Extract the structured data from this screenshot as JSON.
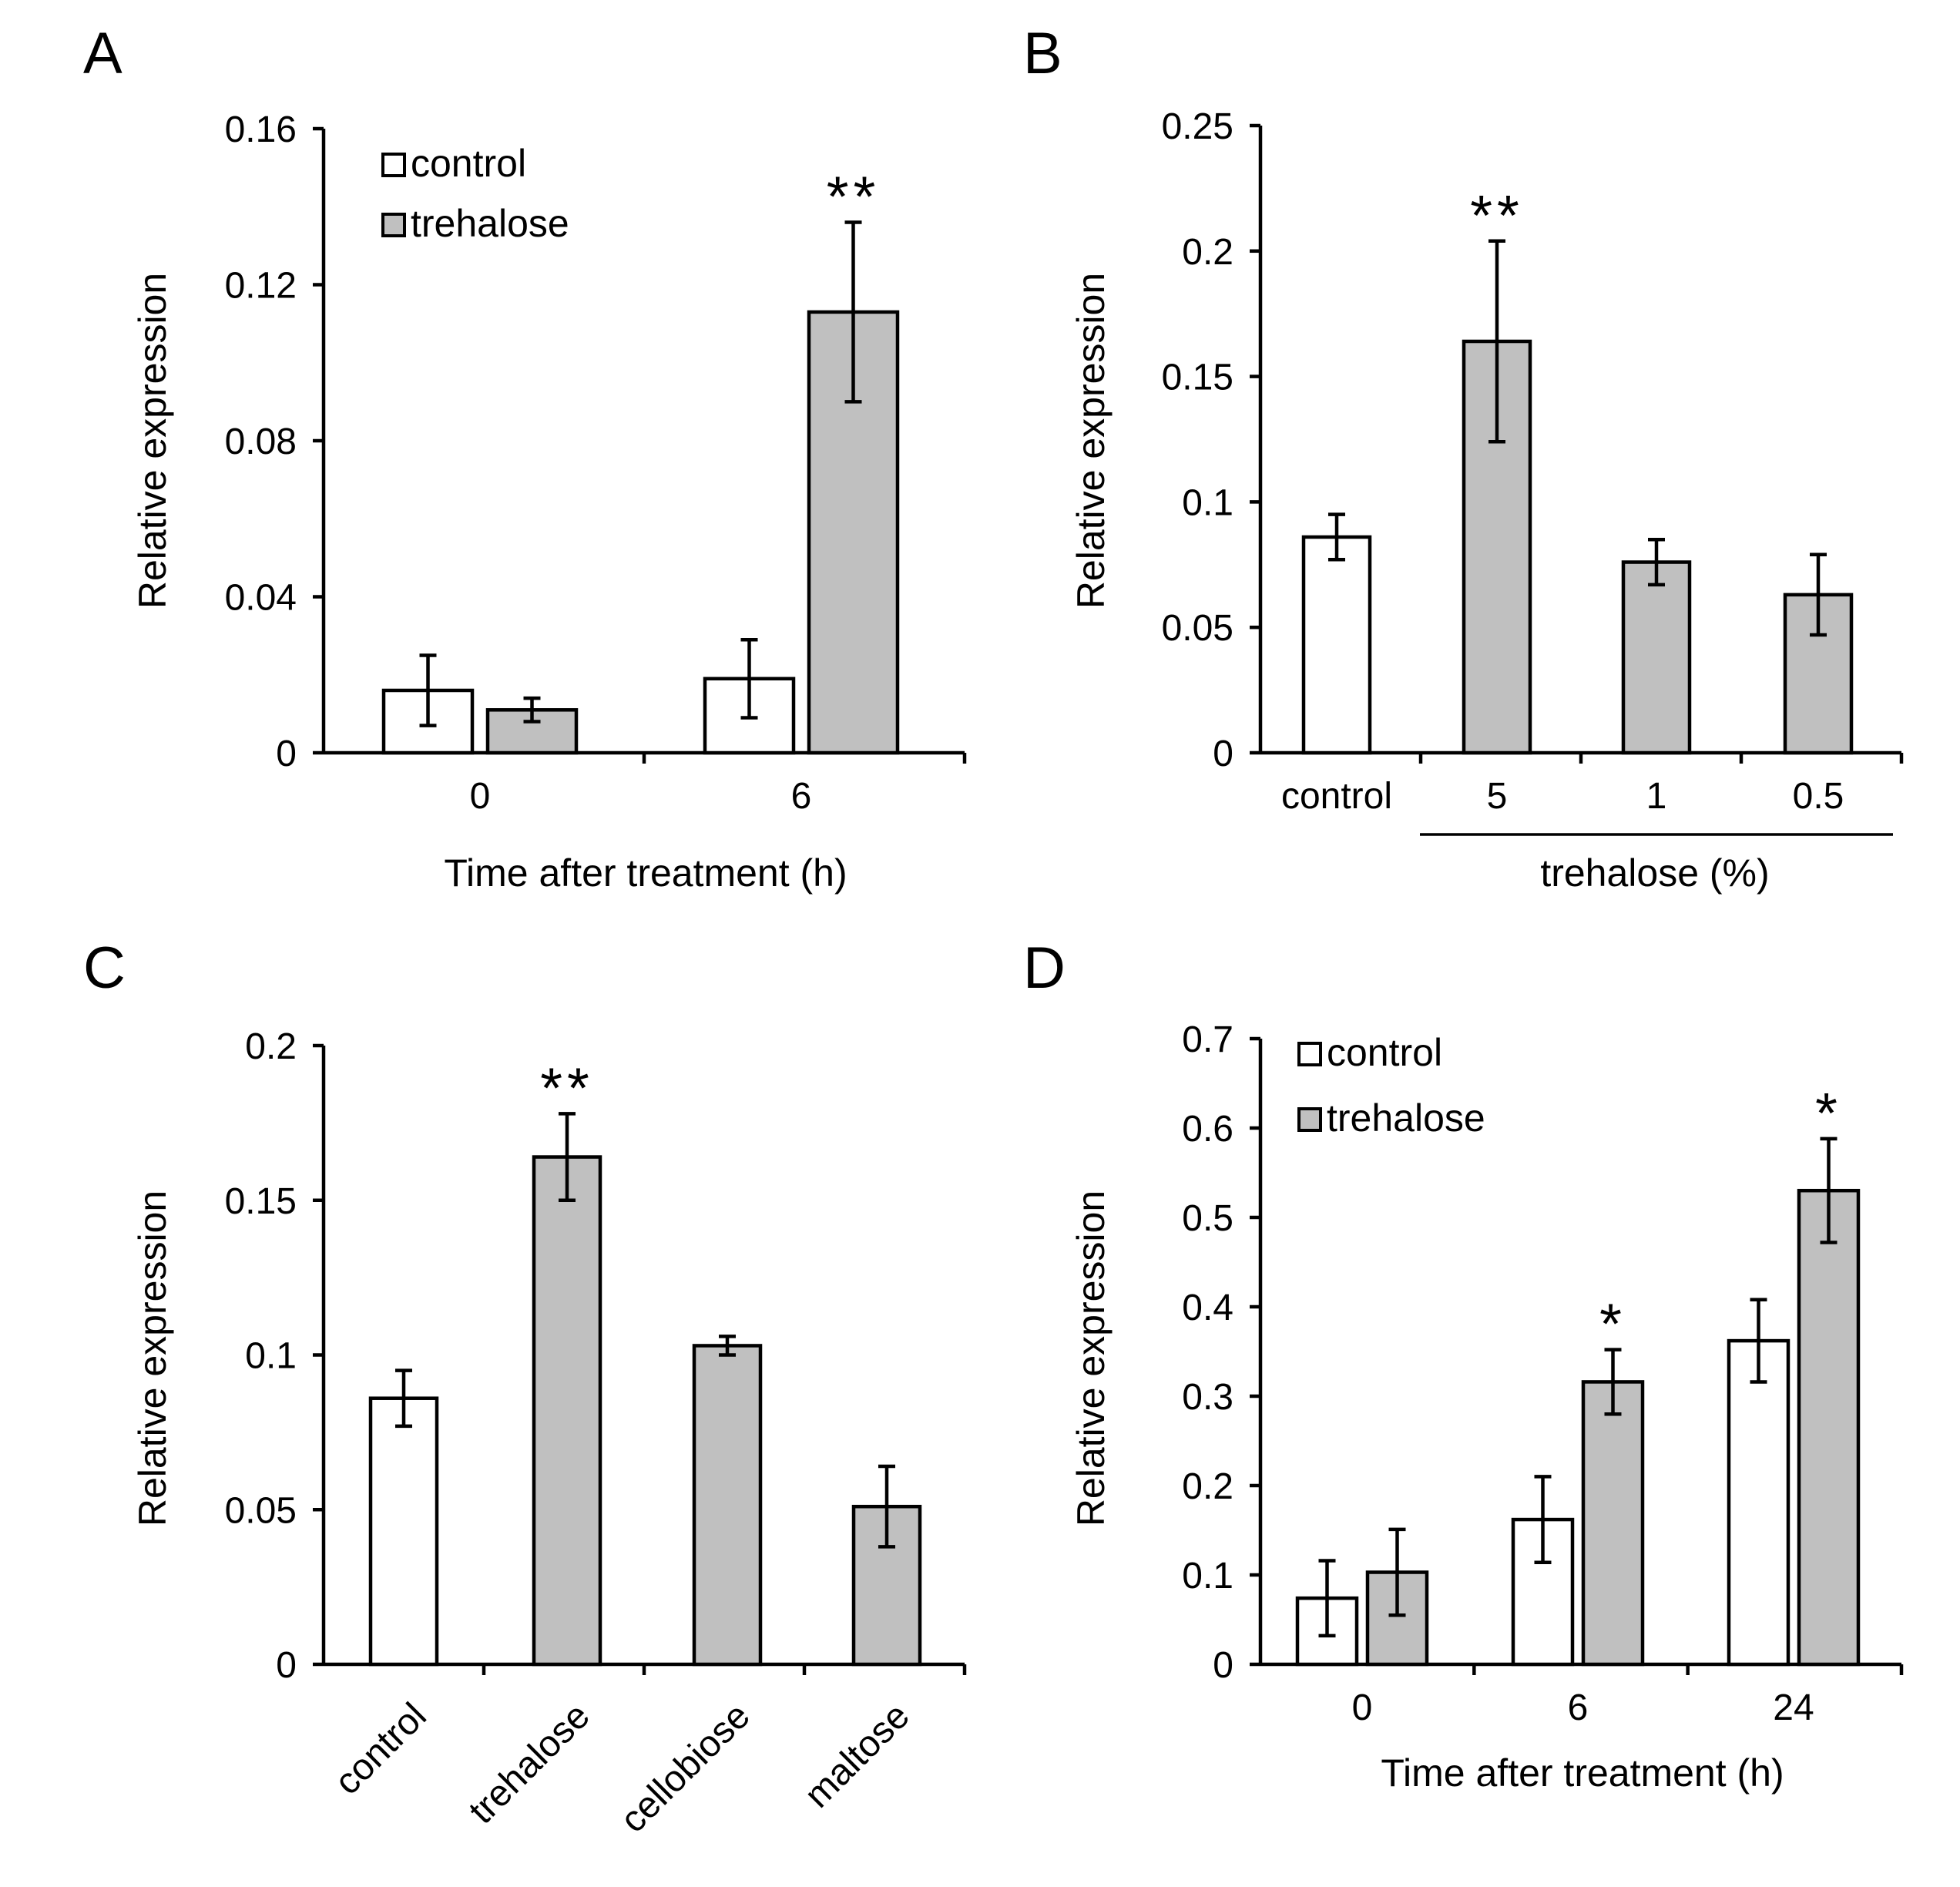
{
  "figure": {
    "colors": {
      "control_fill": "#ffffff",
      "treatment_fill": "#c0c0c0",
      "stroke": "#000000",
      "background": "#ffffff"
    }
  },
  "chart_data": [
    {
      "panel": "A",
      "type": "bar",
      "ylabel": "Relative expression",
      "xlabel": "Time after treatment (h)",
      "ylim": [
        0,
        0.16
      ],
      "yticks": [
        "0",
        "0.04",
        "0.08",
        "0.12",
        "0.16"
      ],
      "ytick_values": [
        0,
        0.04,
        0.08,
        0.12,
        0.16
      ],
      "categories": [
        "0",
        "6"
      ],
      "legend": [
        "control",
        "trehalose"
      ],
      "series": [
        {
          "name": "control",
          "values": [
            0.016,
            0.019
          ],
          "errors": [
            0.009,
            0.01
          ],
          "significance": [
            "",
            ""
          ]
        },
        {
          "name": "trehalose",
          "values": [
            0.011,
            0.113
          ],
          "errors": [
            0.003,
            0.023
          ],
          "significance": [
            "",
            "**"
          ]
        }
      ]
    },
    {
      "panel": "B",
      "type": "bar",
      "ylabel": "Relative expression",
      "xlabel": "trehalose (%)",
      "ylim": [
        0,
        0.25
      ],
      "yticks": [
        "0",
        "0.05",
        "0.1",
        "0.15",
        "0.2",
        "0.25"
      ],
      "ytick_values": [
        0,
        0.05,
        0.1,
        0.15,
        0.2,
        0.25
      ],
      "categories": [
        "control",
        "5",
        "1",
        "0.5"
      ],
      "bar_kind": [
        "control",
        "treatment",
        "treatment",
        "treatment"
      ],
      "values": [
        0.086,
        0.164,
        0.076,
        0.063
      ],
      "errors": [
        0.009,
        0.04,
        0.009,
        0.016
      ],
      "significance": [
        "",
        "**",
        "",
        ""
      ]
    },
    {
      "panel": "C",
      "type": "bar",
      "ylabel": "Relative expression",
      "xlabel": "",
      "ylim": [
        0,
        0.2
      ],
      "yticks": [
        "0",
        "0.05",
        "0.1",
        "0.15",
        "0.2"
      ],
      "ytick_values": [
        0,
        0.05,
        0.1,
        0.15,
        0.2
      ],
      "categories": [
        "control",
        "trehalose",
        "cellobiose",
        "maltose"
      ],
      "bar_kind": [
        "control",
        "treatment",
        "treatment",
        "treatment"
      ],
      "values": [
        0.086,
        0.164,
        0.103,
        0.051
      ],
      "errors": [
        0.009,
        0.014,
        0.003,
        0.013
      ],
      "significance": [
        "",
        "**",
        "",
        ""
      ]
    },
    {
      "panel": "D",
      "type": "bar",
      "ylabel": "Relative expression",
      "xlabel": "Time after treatment (h)",
      "ylim": [
        0,
        0.7
      ],
      "yticks": [
        "0",
        "0.1",
        "0.2",
        "0.3",
        "0.4",
        "0.5",
        "0.6",
        "0.7"
      ],
      "ytick_values": [
        0,
        0.1,
        0.2,
        0.3,
        0.4,
        0.5,
        0.6,
        0.7
      ],
      "categories": [
        "0",
        "6",
        "24"
      ],
      "legend": [
        "control",
        "trehalose"
      ],
      "series": [
        {
          "name": "control",
          "values": [
            0.074,
            0.162,
            0.362
          ],
          "errors": [
            0.042,
            0.048,
            0.046
          ],
          "significance": [
            "",
            "",
            ""
          ]
        },
        {
          "name": "trehalose",
          "values": [
            0.103,
            0.316,
            0.53
          ],
          "errors": [
            0.048,
            0.036,
            0.058
          ],
          "significance": [
            "",
            "*",
            "*"
          ]
        }
      ]
    }
  ]
}
